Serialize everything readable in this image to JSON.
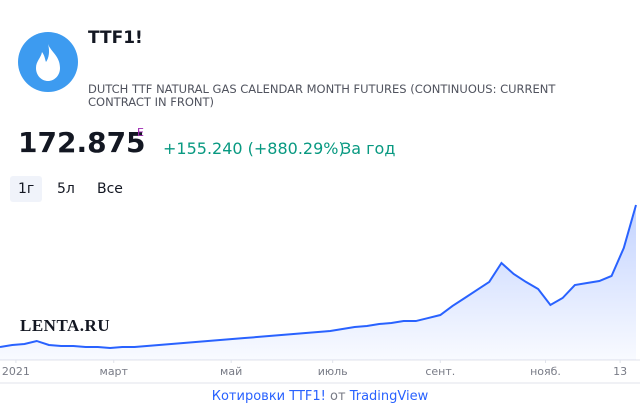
{
  "header": {
    "symbol": "TTF1!",
    "description": "DUTCH TTF NATURAL GAS CALENDAR MONTH FUTURES (CONTINUOUS: CURRENT CONTRACT IN FRONT)",
    "price": "172.875",
    "currency": "E",
    "change": "+155.240 (+880.29%)",
    "period": "За год"
  },
  "range_buttons": [
    "1г",
    "5л",
    "Все"
  ],
  "watermark": "LENTA.RU",
  "footer": {
    "link": "Котировки TTF1!",
    "by": "от",
    "source": "TradingView"
  },
  "chart_data": {
    "type": "area",
    "color": "#2962ff",
    "values": [
      17.6,
      19.8,
      20.9,
      24.2,
      19.8,
      18.7,
      18.7,
      17.6,
      17.6,
      16.5,
      17.6,
      17.6,
      18.7,
      19.8,
      20.9,
      22,
      23.1,
      24.2,
      25.3,
      26.4,
      27.4,
      28.5,
      29.6,
      30.7,
      31.8,
      32.9,
      34,
      35.1,
      37.3,
      39.5,
      40.6,
      42.8,
      43.9,
      46,
      46,
      49.3,
      52.6,
      62.5,
      71.2,
      80,
      88.8,
      109.5,
      97.5,
      88.8,
      81,
      63.6,
      71.2,
      85.4,
      87.6,
      89.8,
      95.3,
      125.9,
      172.9
    ],
    "xlim": [
      0,
      52
    ],
    "ylim": [
      3.4,
      178.4
    ],
    "xticks": [
      {
        "value": 1.3,
        "label": "2021"
      },
      {
        "value": 9.3,
        "label": "март"
      },
      {
        "value": 18.9,
        "label": "май"
      },
      {
        "value": 27.2,
        "label": "июль"
      },
      {
        "value": 36,
        "label": "сент."
      },
      {
        "value": 44.6,
        "label": "нояб."
      },
      {
        "value": 50.7,
        "label": "13"
      }
    ]
  }
}
